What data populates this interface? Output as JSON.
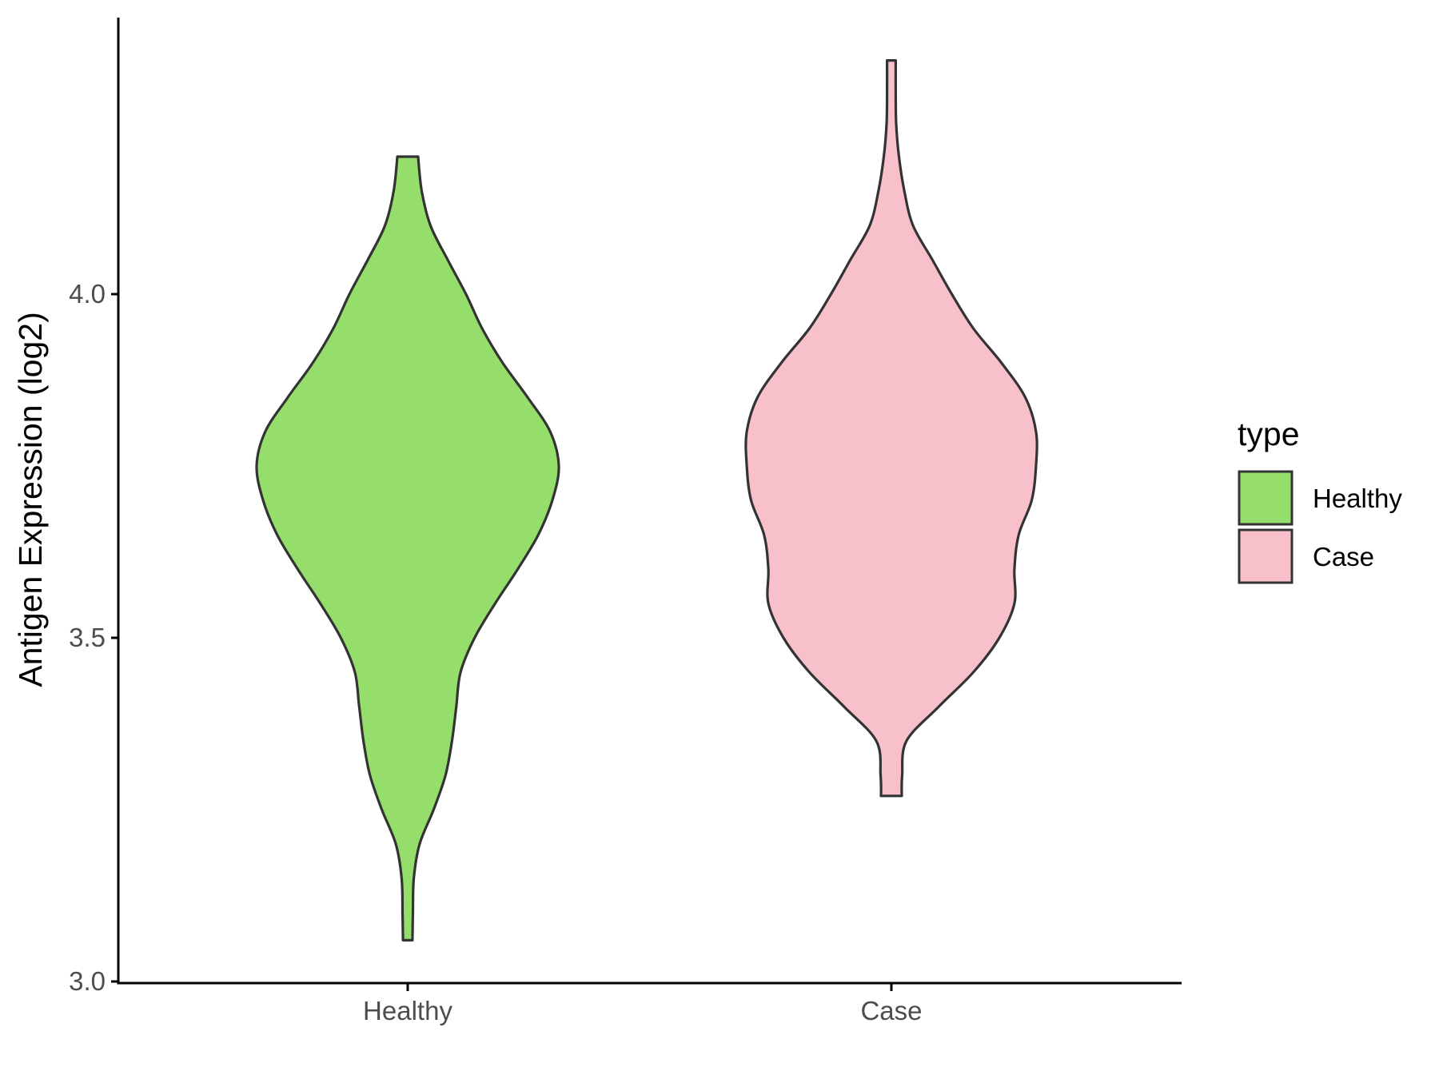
{
  "chart_data": {
    "type": "violin",
    "xlabel": "",
    "ylabel": "Antigen Expression (log2)",
    "ylim": [
      3.0,
      4.4
    ],
    "yticks": [
      "3.0",
      "3.5",
      "4.0"
    ],
    "categories": [
      "Healthy",
      "Case"
    ],
    "grid": false,
    "legend": {
      "title": "type",
      "position": "right",
      "entries": [
        "Healthy",
        "Case"
      ]
    },
    "series": [
      {
        "name": "Healthy",
        "color": "#95DE6B",
        "min": 3.06,
        "max": 4.2,
        "profile": [
          [
            3.06,
            0.022
          ],
          [
            3.1,
            0.024
          ],
          [
            3.15,
            0.028
          ],
          [
            3.2,
            0.055
          ],
          [
            3.25,
            0.12
          ],
          [
            3.3,
            0.175
          ],
          [
            3.35,
            0.205
          ],
          [
            3.4,
            0.225
          ],
          [
            3.45,
            0.245
          ],
          [
            3.5,
            0.31
          ],
          [
            3.55,
            0.405
          ],
          [
            3.6,
            0.51
          ],
          [
            3.65,
            0.605
          ],
          [
            3.7,
            0.67
          ],
          [
            3.75,
            0.7
          ],
          [
            3.8,
            0.66
          ],
          [
            3.85,
            0.555
          ],
          [
            3.9,
            0.44
          ],
          [
            3.95,
            0.345
          ],
          [
            4.0,
            0.27
          ],
          [
            4.05,
            0.185
          ],
          [
            4.1,
            0.105
          ],
          [
            4.15,
            0.065
          ],
          [
            4.2,
            0.048
          ]
        ]
      },
      {
        "name": "Case",
        "color": "#F7C0CB",
        "min": 3.27,
        "max": 4.34,
        "profile": [
          [
            3.27,
            0.048
          ],
          [
            3.3,
            0.05
          ],
          [
            3.35,
            0.07
          ],
          [
            3.4,
            0.22
          ],
          [
            3.45,
            0.38
          ],
          [
            3.5,
            0.5
          ],
          [
            3.55,
            0.57
          ],
          [
            3.6,
            0.57
          ],
          [
            3.65,
            0.59
          ],
          [
            3.7,
            0.65
          ],
          [
            3.75,
            0.67
          ],
          [
            3.8,
            0.67
          ],
          [
            3.85,
            0.62
          ],
          [
            3.9,
            0.51
          ],
          [
            3.95,
            0.38
          ],
          [
            4.0,
            0.28
          ],
          [
            4.05,
            0.19
          ],
          [
            4.1,
            0.1
          ],
          [
            4.15,
            0.06
          ],
          [
            4.2,
            0.035
          ],
          [
            4.25,
            0.022
          ],
          [
            4.3,
            0.02
          ],
          [
            4.34,
            0.02
          ]
        ]
      }
    ]
  }
}
